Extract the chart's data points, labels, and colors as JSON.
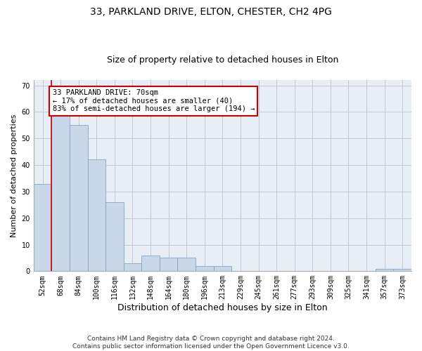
{
  "title1": "33, PARKLAND DRIVE, ELTON, CHESTER, CH2 4PG",
  "title2": "Size of property relative to detached houses in Elton",
  "xlabel": "Distribution of detached houses by size in Elton",
  "ylabel": "Number of detached properties",
  "categories": [
    "52sqm",
    "68sqm",
    "84sqm",
    "100sqm",
    "116sqm",
    "132sqm",
    "148sqm",
    "164sqm",
    "180sqm",
    "196sqm",
    "213sqm",
    "229sqm",
    "245sqm",
    "261sqm",
    "277sqm",
    "293sqm",
    "309sqm",
    "325sqm",
    "341sqm",
    "357sqm",
    "373sqm"
  ],
  "values": [
    33,
    59,
    55,
    42,
    26,
    3,
    6,
    5,
    5,
    2,
    2,
    0,
    0,
    0,
    0,
    0,
    0,
    0,
    0,
    1,
    1
  ],
  "bar_color": "#c8d8e8",
  "bar_edge_color": "#7799bb",
  "marker_color": "#cc0000",
  "annotation_text": "33 PARKLAND DRIVE: 70sqm\n← 17% of detached houses are smaller (40)\n83% of semi-detached houses are larger (194) →",
  "annotation_box_color": "white",
  "annotation_box_edge": "#cc0000",
  "ylim": [
    0,
    72
  ],
  "yticks": [
    0,
    10,
    20,
    30,
    40,
    50,
    60,
    70
  ],
  "grid_color": "#c0c8d8",
  "bg_color": "#e8eef5",
  "footer": "Contains HM Land Registry data © Crown copyright and database right 2024.\nContains public sector information licensed under the Open Government Licence v3.0.",
  "title1_fontsize": 10,
  "title2_fontsize": 9,
  "xlabel_fontsize": 9,
  "ylabel_fontsize": 8,
  "tick_fontsize": 7,
  "footer_fontsize": 6.5,
  "ann_fontsize": 7.5
}
